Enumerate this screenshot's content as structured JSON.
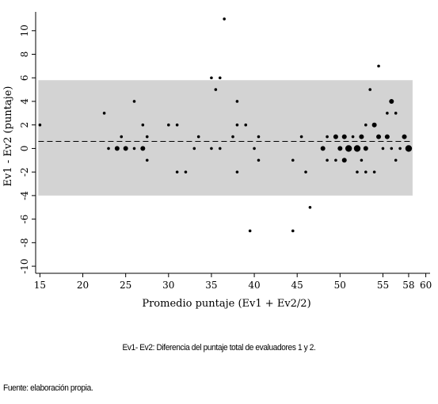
{
  "chart_data": {
    "type": "scatter",
    "xlabel": "Promedio puntaje (Ev1 + Ev2/2)",
    "ylabel": "Ev1 - Ev2 (puntaje)",
    "xlim": [
      14.5,
      60.5
    ],
    "ylim": [
      -10.6,
      11.6
    ],
    "xticks": [
      15,
      20,
      25,
      30,
      35,
      40,
      45,
      50,
      55,
      58,
      60
    ],
    "yticks": [
      -10,
      -8,
      -6,
      -4,
      -2,
      0,
      2,
      4,
      6,
      8,
      10
    ],
    "mean_line": 0.6,
    "band": [
      -4.0,
      5.8
    ],
    "band_color": "#d3d3d3",
    "points": [
      {
        "x": 15,
        "y": 2,
        "n": 1
      },
      {
        "x": 22.5,
        "y": 3,
        "n": 1
      },
      {
        "x": 23,
        "y": 0,
        "n": 1
      },
      {
        "x": 24,
        "y": 0,
        "n": 2
      },
      {
        "x": 24.5,
        "y": 1,
        "n": 1
      },
      {
        "x": 25,
        "y": 0,
        "n": 2
      },
      {
        "x": 26,
        "y": 4,
        "n": 1
      },
      {
        "x": 26,
        "y": 0,
        "n": 1
      },
      {
        "x": 27,
        "y": 2,
        "n": 1
      },
      {
        "x": 27,
        "y": 0,
        "n": 2
      },
      {
        "x": 27.5,
        "y": 1,
        "n": 1
      },
      {
        "x": 27.5,
        "y": -1,
        "n": 1
      },
      {
        "x": 30,
        "y": 2,
        "n": 1
      },
      {
        "x": 31,
        "y": 2,
        "n": 1
      },
      {
        "x": 31,
        "y": -2,
        "n": 1
      },
      {
        "x": 32,
        "y": -2,
        "n": 1
      },
      {
        "x": 33,
        "y": 0,
        "n": 1
      },
      {
        "x": 33.5,
        "y": 1,
        "n": 1
      },
      {
        "x": 35,
        "y": 6,
        "n": 1
      },
      {
        "x": 35,
        "y": 0,
        "n": 1
      },
      {
        "x": 35.5,
        "y": 5,
        "n": 1
      },
      {
        "x": 36,
        "y": 6,
        "n": 1
      },
      {
        "x": 36,
        "y": 0,
        "n": 1
      },
      {
        "x": 36.5,
        "y": 11,
        "n": 1
      },
      {
        "x": 37.5,
        "y": 1,
        "n": 1
      },
      {
        "x": 38,
        "y": 4,
        "n": 1
      },
      {
        "x": 38,
        "y": 2,
        "n": 1
      },
      {
        "x": 38,
        "y": -2,
        "n": 1
      },
      {
        "x": 39,
        "y": 2,
        "n": 1
      },
      {
        "x": 39.5,
        "y": -7,
        "n": 1
      },
      {
        "x": 40,
        "y": 0,
        "n": 1
      },
      {
        "x": 40.5,
        "y": 1,
        "n": 1
      },
      {
        "x": 40.5,
        "y": -1,
        "n": 1
      },
      {
        "x": 44.5,
        "y": -7,
        "n": 1
      },
      {
        "x": 44.5,
        "y": -1,
        "n": 1
      },
      {
        "x": 45.5,
        "y": 1,
        "n": 1
      },
      {
        "x": 46,
        "y": -2,
        "n": 1
      },
      {
        "x": 46.5,
        "y": -5,
        "n": 1
      },
      {
        "x": 48,
        "y": 0,
        "n": 2
      },
      {
        "x": 48.5,
        "y": 1,
        "n": 1
      },
      {
        "x": 48.5,
        "y": -1,
        "n": 1
      },
      {
        "x": 49.5,
        "y": 1,
        "n": 2
      },
      {
        "x": 49.5,
        "y": -1,
        "n": 1
      },
      {
        "x": 50,
        "y": 0,
        "n": 2
      },
      {
        "x": 50.5,
        "y": 1,
        "n": 2
      },
      {
        "x": 50.5,
        "y": -1,
        "n": 2
      },
      {
        "x": 51,
        "y": 0,
        "n": 3
      },
      {
        "x": 51.5,
        "y": 1,
        "n": 1
      },
      {
        "x": 52,
        "y": 0,
        "n": 3
      },
      {
        "x": 52,
        "y": -2,
        "n": 1
      },
      {
        "x": 52.5,
        "y": 1,
        "n": 2
      },
      {
        "x": 52.5,
        "y": -1,
        "n": 1
      },
      {
        "x": 53,
        "y": 2,
        "n": 1
      },
      {
        "x": 53,
        "y": 0,
        "n": 2
      },
      {
        "x": 53,
        "y": -2,
        "n": 1
      },
      {
        "x": 53.5,
        "y": 5,
        "n": 1
      },
      {
        "x": 54,
        "y": 2,
        "n": 2
      },
      {
        "x": 54,
        "y": -2,
        "n": 1
      },
      {
        "x": 54.5,
        "y": 7,
        "n": 1
      },
      {
        "x": 54.5,
        "y": 1,
        "n": 2
      },
      {
        "x": 55,
        "y": 0,
        "n": 1
      },
      {
        "x": 55.5,
        "y": 3,
        "n": 1
      },
      {
        "x": 55.5,
        "y": 1,
        "n": 2
      },
      {
        "x": 56,
        "y": 4,
        "n": 2
      },
      {
        "x": 56,
        "y": 0,
        "n": 1
      },
      {
        "x": 56.5,
        "y": 3,
        "n": 1
      },
      {
        "x": 56.5,
        "y": -1,
        "n": 1
      },
      {
        "x": 57,
        "y": 0,
        "n": 1
      },
      {
        "x": 57.5,
        "y": 1,
        "n": 2
      },
      {
        "x": 58,
        "y": 0,
        "n": 3
      }
    ]
  },
  "caption": "Ev1- Ev2: Diferencia del puntaje total de evaluadores 1 y 2.",
  "source": "Fuente: elaboración propia."
}
